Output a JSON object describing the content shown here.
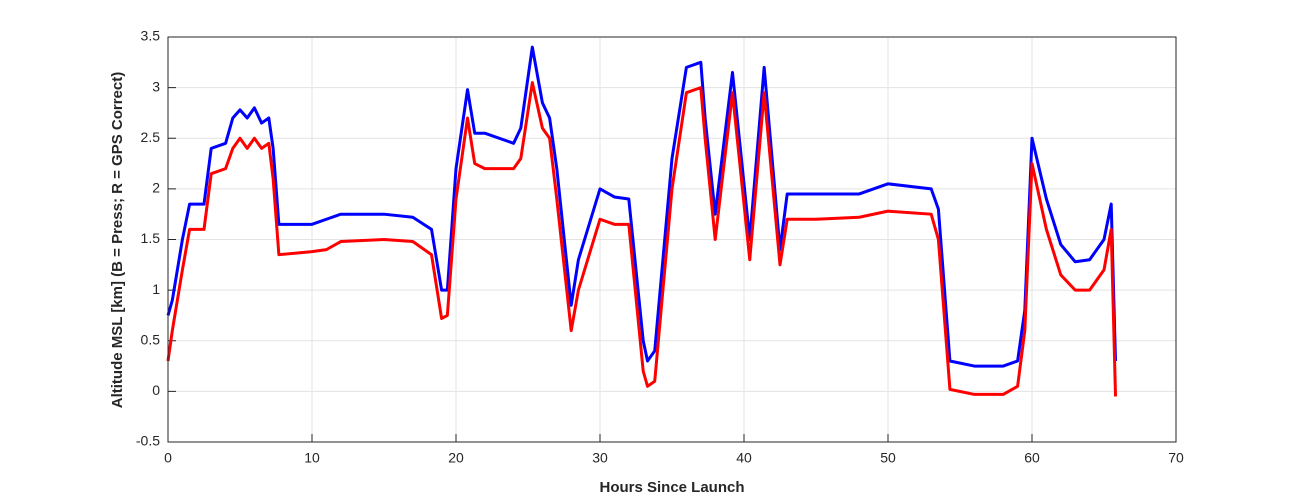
{
  "chart_data": {
    "type": "line",
    "xlabel": "Hours Since Launch",
    "ylabel": "Altitude MSL [km]   (B = Press; R = GPS Correct)",
    "x": [
      0,
      0.3,
      1,
      1.5,
      2.5,
      3,
      4,
      4.5,
      5,
      5.5,
      6,
      6.5,
      7,
      7.3,
      7.7,
      10,
      11,
      12,
      15,
      17,
      18.3,
      19,
      19.4,
      20,
      20.8,
      21.3,
      22,
      24,
      24.5,
      25.3,
      26,
      26.5,
      27,
      28,
      28.5,
      30,
      31,
      32,
      33,
      33.3,
      33.8,
      35,
      36,
      37,
      37.3,
      38,
      39.2,
      40.4,
      41.4,
      42.5,
      43,
      45,
      48,
      50,
      53,
      53.5,
      54.3,
      56,
      58,
      59,
      59.5,
      60,
      61,
      62,
      63,
      64,
      65,
      65.5,
      65.8
    ],
    "series": [
      {
        "color": "#0000ff",
        "values": [
          0.75,
          0.9,
          1.5,
          1.85,
          1.85,
          2.4,
          2.45,
          2.7,
          2.78,
          2.7,
          2.8,
          2.65,
          2.7,
          2.4,
          1.65,
          1.65,
          1.7,
          1.75,
          1.75,
          1.72,
          1.6,
          1.0,
          1.0,
          2.2,
          2.98,
          2.55,
          2.55,
          2.45,
          2.6,
          3.4,
          2.85,
          2.7,
          2.2,
          0.85,
          1.3,
          2.0,
          1.92,
          1.9,
          0.5,
          0.3,
          0.4,
          2.3,
          3.2,
          3.25,
          2.7,
          1.75,
          3.15,
          1.5,
          3.2,
          1.4,
          1.95,
          1.95,
          1.95,
          2.05,
          2.0,
          1.8,
          0.3,
          0.25,
          0.25,
          0.3,
          0.8,
          2.5,
          1.9,
          1.45,
          1.28,
          1.3,
          1.5,
          1.85,
          0.3
        ]
      },
      {
        "color": "#ff0000",
        "values": [
          0.3,
          0.6,
          1.2,
          1.6,
          1.6,
          2.15,
          2.2,
          2.4,
          2.5,
          2.4,
          2.5,
          2.4,
          2.45,
          2.1,
          1.35,
          1.38,
          1.4,
          1.48,
          1.5,
          1.48,
          1.35,
          0.72,
          0.75,
          1.9,
          2.7,
          2.25,
          2.2,
          2.2,
          2.3,
          3.05,
          2.6,
          2.5,
          1.9,
          0.6,
          1.0,
          1.7,
          1.65,
          1.65,
          0.2,
          0.05,
          0.1,
          2.0,
          2.95,
          3.0,
          2.5,
          1.5,
          2.95,
          1.3,
          2.95,
          1.25,
          1.7,
          1.7,
          1.72,
          1.78,
          1.75,
          1.5,
          0.02,
          -0.03,
          -0.03,
          0.05,
          0.6,
          2.25,
          1.6,
          1.15,
          1.0,
          1.0,
          1.2,
          1.6,
          -0.05
        ]
      }
    ],
    "xlim": [
      0,
      70
    ],
    "xticks": [
      0,
      10,
      20,
      30,
      40,
      50,
      60,
      70
    ],
    "ylim": [
      -0.5,
      3.5
    ],
    "yticks": [
      -0.5,
      0,
      0.5,
      1,
      1.5,
      2,
      2.5,
      3,
      3.5
    ],
    "grid": true
  }
}
